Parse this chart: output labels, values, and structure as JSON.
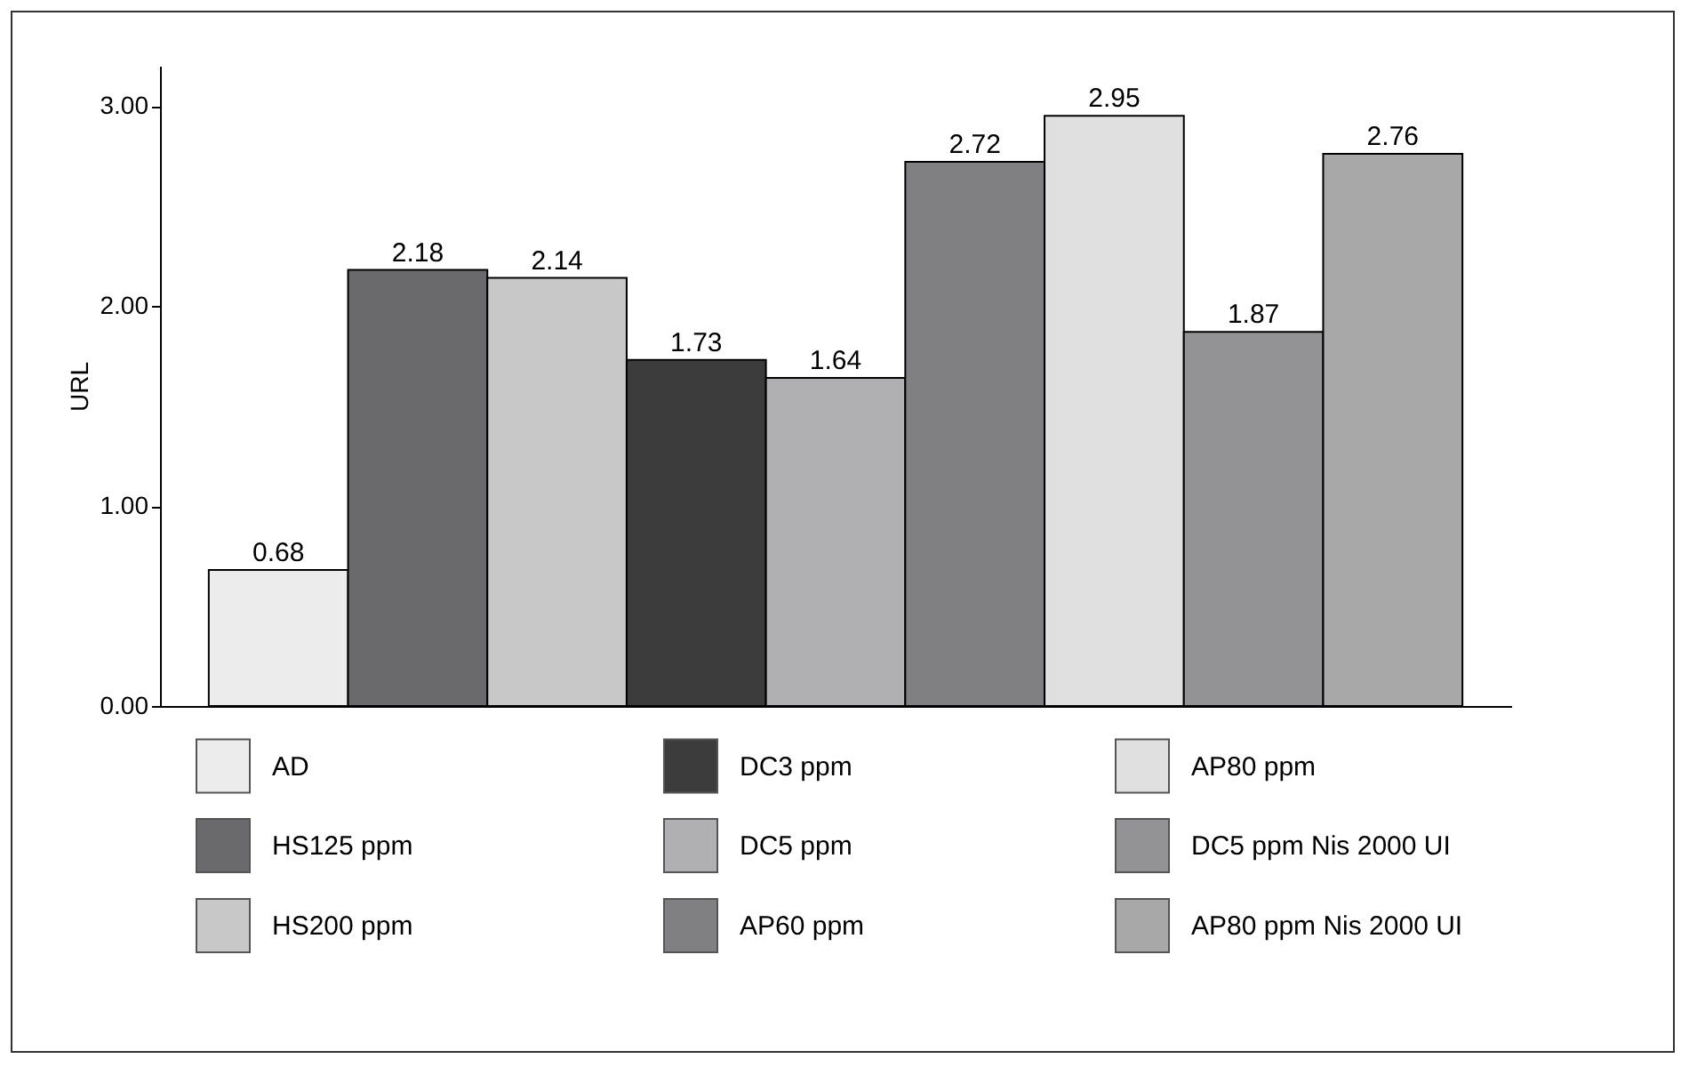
{
  "chart_data": {
    "type": "bar",
    "ylabel": "URL",
    "categories": [
      null,
      null,
      null,
      null,
      null,
      null,
      null,
      null,
      null
    ],
    "series": [
      {
        "name": "AD",
        "color": "#ececec",
        "values": [
          0.68,
          null,
          null,
          null,
          null,
          null,
          null,
          null,
          null
        ]
      },
      {
        "name": "HS125 ppm",
        "color": "#6a6a6c",
        "values": [
          null,
          2.18,
          null,
          null,
          null,
          null,
          null,
          null,
          null
        ]
      },
      {
        "name": "HS200 ppm",
        "color": "#c8c8c8",
        "values": [
          null,
          null,
          2.14,
          null,
          null,
          null,
          null,
          null,
          null
        ]
      },
      {
        "name": "DC3 ppm",
        "color": "#3c3c3c",
        "values": [
          null,
          null,
          null,
          1.73,
          null,
          null,
          null,
          null,
          null
        ]
      },
      {
        "name": "DC5 ppm",
        "color": "#b0b0b2",
        "values": [
          null,
          null,
          null,
          null,
          1.64,
          null,
          null,
          null,
          null
        ]
      },
      {
        "name": "AP60 ppm",
        "color": "#808082",
        "values": [
          null,
          null,
          null,
          null,
          null,
          2.72,
          null,
          null,
          null
        ]
      },
      {
        "name": "AP80 ppm",
        "color": "#e0e0e0",
        "values": [
          null,
          null,
          null,
          null,
          null,
          null,
          2.95,
          null,
          null
        ]
      },
      {
        "name": "DC5 ppm Nis 2000 UI",
        "color": "#939395",
        "values": [
          null,
          null,
          null,
          null,
          null,
          null,
          null,
          1.87,
          null
        ]
      },
      {
        "name": "AP80 ppm Nis 2000 UI",
        "color": "#a8a8a8",
        "values": [
          null,
          null,
          null,
          null,
          null,
          null,
          null,
          null,
          2.76
        ]
      }
    ],
    "ylim": [
      0,
      3.2
    ],
    "yticks": [
      {
        "value": 0,
        "label": "0.00"
      },
      {
        "value": 1,
        "label": "1.00"
      },
      {
        "value": 2,
        "label": "2.00"
      },
      {
        "value": 3,
        "label": "3.00"
      }
    ],
    "grid": false,
    "legend": "bottom",
    "data_labels": true
  }
}
